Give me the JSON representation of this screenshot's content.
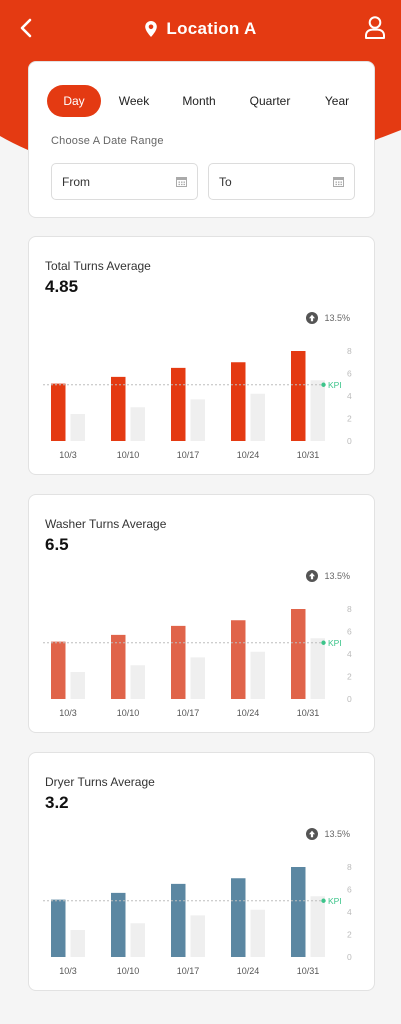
{
  "header": {
    "title": "Location A",
    "back_icon": "chevron-left-icon",
    "location_icon": "location-pin-icon",
    "profile_icon": "user-icon"
  },
  "colors": {
    "brand": "#e43a12",
    "washer": "#e0644a",
    "dryer": "#5b87a2",
    "kpi": "#3cc48a",
    "ghost": "#efefef"
  },
  "filter": {
    "tabs": [
      "Day",
      "Week",
      "Month",
      "Quarter",
      "Year"
    ],
    "active_tab": "Day",
    "range_label": "Choose A Date Range",
    "from_placeholder": "From",
    "to_placeholder": "To"
  },
  "charts": [
    {
      "title": "Total Turns Average",
      "value": "4.85",
      "change": "13.5%",
      "kpi_label": "KPI"
    },
    {
      "title": "Washer Turns Average",
      "value": "6.5",
      "change": "13.5%",
      "kpi_label": "KPI"
    },
    {
      "title": "Dryer Turns Average",
      "value": "3.2",
      "change": "13.5%",
      "kpi_label": "KPI"
    }
  ],
  "chart_data": [
    {
      "type": "bar",
      "categories": [
        "10/3",
        "10/10",
        "10/17",
        "10/24",
        "10/31"
      ],
      "ylim": [
        0,
        8
      ],
      "yticks": [
        0,
        2,
        4,
        6,
        8
      ],
      "kpi": 5,
      "legend": "none",
      "grid": false,
      "series": [
        {
          "values": [
            5.1,
            5.7,
            6.5,
            7.0,
            8.0
          ]
        },
        {
          "values": [
            2.4,
            3.0,
            3.7,
            4.2,
            5.4
          ]
        }
      ]
    },
    {
      "type": "bar",
      "categories": [
        "10/3",
        "10/10",
        "10/17",
        "10/24",
        "10/31"
      ],
      "ylim": [
        0,
        8
      ],
      "yticks": [
        0,
        2,
        4,
        6,
        8
      ],
      "kpi": 5,
      "legend": "none",
      "grid": false,
      "series": [
        {
          "values": [
            5.1,
            5.7,
            6.5,
            7.0,
            8.0
          ]
        },
        {
          "values": [
            2.4,
            3.0,
            3.7,
            4.2,
            5.4
          ]
        }
      ]
    },
    {
      "type": "bar",
      "categories": [
        "10/3",
        "10/10",
        "10/17",
        "10/24",
        "10/31"
      ],
      "ylim": [
        0,
        8
      ],
      "yticks": [
        0,
        2,
        4,
        6,
        8
      ],
      "kpi": 5,
      "legend": "none",
      "grid": false,
      "series": [
        {
          "values": [
            5.1,
            5.7,
            6.5,
            7.0,
            8.0
          ]
        },
        {
          "values": [
            2.4,
            3.0,
            3.7,
            4.2,
            5.4
          ]
        }
      ]
    }
  ]
}
